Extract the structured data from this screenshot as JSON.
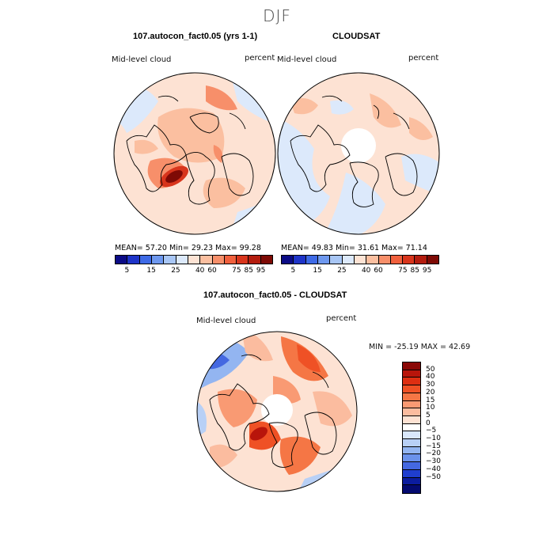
{
  "figure": {
    "season": "DJF"
  },
  "panels": {
    "model": {
      "title": "107.autocon_fact0.05 (yrs 1-1)",
      "variable": "Mid-level cloud",
      "units": "percent",
      "stats": "MEAN=   57.20   Min=   29.23   Max=   99.28"
    },
    "obs": {
      "title": "CLOUDSAT",
      "variable": "Mid-level cloud",
      "units": "percent",
      "stats": "MEAN=   49.83   Min=   31.61   Max=   71.14"
    },
    "diff": {
      "title": "107.autocon_fact0.05 - CLOUDSAT",
      "variable": "Mid-level cloud",
      "units": "percent",
      "minmax": "MIN = -25.19  MAX =  42.69"
    }
  },
  "colorbars": {
    "abs": {
      "labels": [
        "5",
        "15",
        "25",
        "40",
        "60",
        "75",
        "85",
        "95"
      ],
      "colors": [
        "#0b0b86",
        "#1e34c8",
        "#3e6ae6",
        "#6e98ef",
        "#a8c6f5",
        "#dce9fb",
        "#fde3d4",
        "#fbbfa0",
        "#f78f6a",
        "#f0603d",
        "#d8351c",
        "#b31c0e",
        "#7e0a05"
      ]
    },
    "diff": {
      "labels": [
        "50",
        "40",
        "30",
        "20",
        "15",
        "10",
        "5",
        "0",
        "−5",
        "−10",
        "−15",
        "−20",
        "−30",
        "−40",
        "−50"
      ],
      "colors": [
        "#8a0806",
        "#b8150b",
        "#de2f12",
        "#ef5125",
        "#f57645",
        "#f99a73",
        "#fbbc9f",
        "#fde2d3",
        "#ffffff",
        "#d9e7fb",
        "#b8d0f6",
        "#93b5f1",
        "#6b92eb",
        "#4468e1",
        "#1f3ecf",
        "#0b1c9e",
        "#040a70"
      ]
    }
  }
}
